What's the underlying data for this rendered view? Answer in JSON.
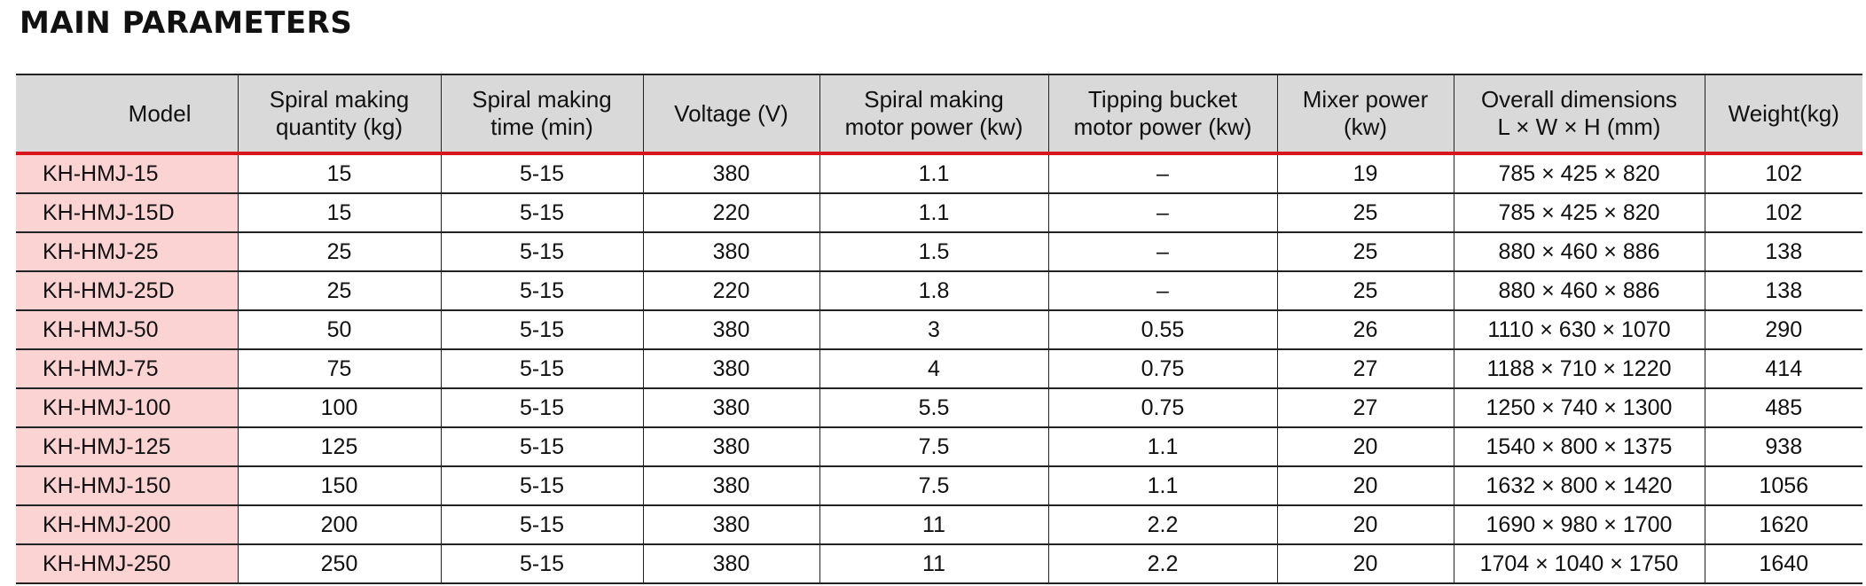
{
  "title": "MAIN PARAMETERS",
  "colors": {
    "header_background": "#d9d9d9",
    "header_rule": "#d8161b",
    "model_cell_background": "#fbd3d3"
  },
  "table": {
    "headers": [
      {
        "line1": "Model",
        "line2": ""
      },
      {
        "line1": "Spiral making",
        "line2": "quantity (kg)"
      },
      {
        "line1": "Spiral making",
        "line2": "time (min)"
      },
      {
        "line1": "Voltage (V)",
        "line2": ""
      },
      {
        "line1": "Spiral making",
        "line2": "motor power (kw)"
      },
      {
        "line1": "Tipping bucket",
        "line2": "motor power (kw)"
      },
      {
        "line1": "Mixer power",
        "line2": "(kw)"
      },
      {
        "line1": "Overall dimensions",
        "line2": "L × W × H (mm)"
      },
      {
        "line1": "Weight(kg)",
        "line2": ""
      }
    ],
    "rows": [
      [
        "KH-HMJ-15",
        "15",
        "5-15",
        "380",
        "1.1",
        "–",
        "19",
        "785 × 425 × 820",
        "102"
      ],
      [
        "KH-HMJ-15D",
        "15",
        "5-15",
        "220",
        "1.1",
        "–",
        "25",
        "785 × 425 × 820",
        "102"
      ],
      [
        "KH-HMJ-25",
        "25",
        "5-15",
        "380",
        "1.5",
        "–",
        "25",
        "880 × 460 × 886",
        "138"
      ],
      [
        "KH-HMJ-25D",
        "25",
        "5-15",
        "220",
        "1.8",
        "–",
        "25",
        "880 × 460 × 886",
        "138"
      ],
      [
        "KH-HMJ-50",
        "50",
        "5-15",
        "380",
        "3",
        "0.55",
        "26",
        "1110 × 630 × 1070",
        "290"
      ],
      [
        "KH-HMJ-75",
        "75",
        "5-15",
        "380",
        "4",
        "0.75",
        "27",
        "1188 × 710 × 1220",
        "414"
      ],
      [
        "KH-HMJ-100",
        "100",
        "5-15",
        "380",
        "5.5",
        "0.75",
        "27",
        "1250 × 740 × 1300",
        "485"
      ],
      [
        "KH-HMJ-125",
        "125",
        "5-15",
        "380",
        "7.5",
        "1.1",
        "20",
        "1540 × 800 × 1375",
        "938"
      ],
      [
        "KH-HMJ-150",
        "150",
        "5-15",
        "380",
        "7.5",
        "1.1",
        "20",
        "1632 × 800 × 1420",
        "1056"
      ],
      [
        "KH-HMJ-200",
        "200",
        "5-15",
        "380",
        "11",
        "2.2",
        "20",
        "1690 × 980 × 1700",
        "1620"
      ],
      [
        "KH-HMJ-250",
        "250",
        "5-15",
        "380",
        "11",
        "2.2",
        "20",
        "1704 × 1040 × 1750",
        "1640"
      ]
    ]
  }
}
